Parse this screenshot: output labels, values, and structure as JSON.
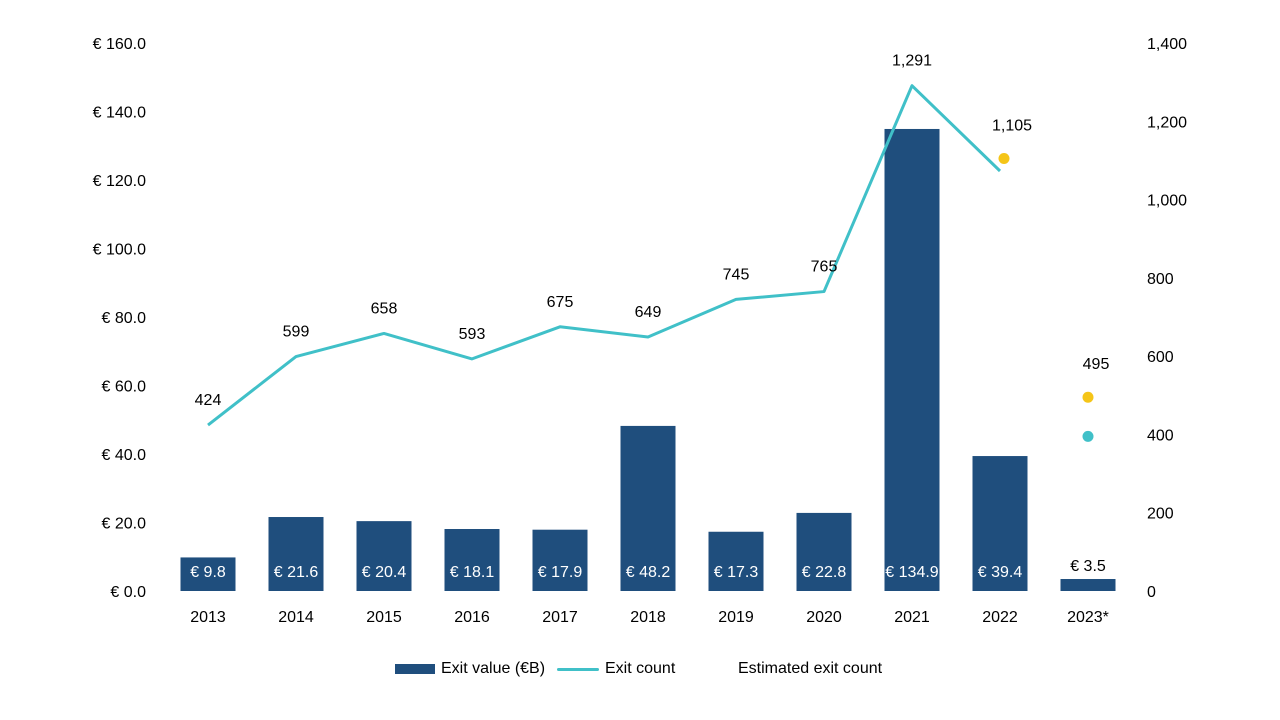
{
  "chart_data": {
    "type": "bar+line",
    "title": "",
    "categories": [
      "2013",
      "2014",
      "2015",
      "2016",
      "2017",
      "2018",
      "2019",
      "2020",
      "2021",
      "2022",
      "2023*"
    ],
    "series": [
      {
        "name": "Exit value (€B)",
        "type": "bar",
        "axis": "left",
        "color": "#1f4e7d",
        "values": [
          9.8,
          21.6,
          20.4,
          18.1,
          17.9,
          48.2,
          17.3,
          22.8,
          134.9,
          39.4,
          3.5
        ],
        "labels": [
          "€ 9.8",
          "€ 21.6",
          "€ 20.4",
          "€ 18.1",
          "€ 17.9",
          "€ 48.2",
          "€ 17.3",
          "€ 22.8",
          "€ 134.9",
          "€ 39.4",
          "€ 3.5"
        ]
      },
      {
        "name": "Exit count",
        "type": "line",
        "axis": "right",
        "color": "#40c0c8",
        "values": [
          424,
          599,
          658,
          593,
          675,
          649,
          745,
          765,
          1291,
          1073,
          395
        ],
        "labels": [
          "424",
          "599",
          "658",
          "593",
          "675",
          "649",
          "745",
          "765",
          "1,291",
          "",
          ""
        ],
        "line_break_before_last": true
      },
      {
        "name": "Estimated exit count",
        "type": "scatter",
        "axis": "right",
        "color": "#f5c518",
        "points": [
          {
            "category": "2022",
            "value": 1105,
            "label": "1,105"
          },
          {
            "category": "2023*",
            "value": 495,
            "label": "495"
          }
        ]
      }
    ],
    "left_axis": {
      "range": [
        0,
        160
      ],
      "ticks": [
        0,
        20,
        40,
        60,
        80,
        100,
        120,
        140,
        160
      ],
      "tick_labels": [
        "€ 0.0",
        "€ 20.0",
        "€ 40.0",
        "€ 60.0",
        "€ 80.0",
        "€ 100.0",
        "€ 120.0",
        "€ 140.0",
        "€ 160.0"
      ]
    },
    "right_axis": {
      "range": [
        0,
        1400
      ],
      "ticks": [
        0,
        200,
        400,
        600,
        800,
        1000,
        1200,
        1400
      ],
      "tick_labels": [
        "0",
        "200",
        "400",
        "600",
        "800",
        "1,000",
        "1,200",
        "1,400"
      ]
    },
    "grid": false,
    "legend": {
      "placement": "bottom",
      "entries": [
        "Exit value (€B)",
        "Exit count",
        "Estimated exit count"
      ]
    }
  }
}
